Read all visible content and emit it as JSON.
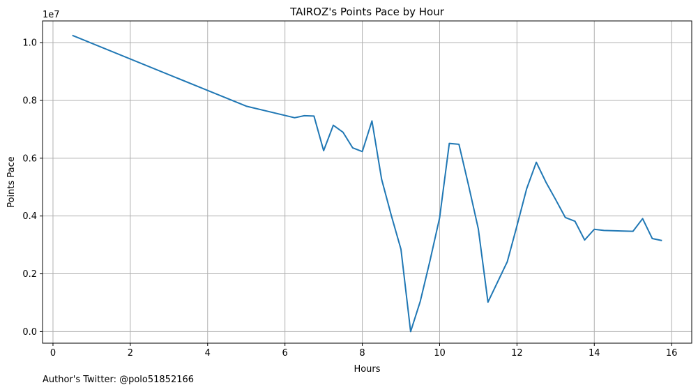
{
  "footer": {
    "author": "Author's Twitter: @polo51852166"
  },
  "chart_data": {
    "type": "line",
    "title": "TAIROZ's Points Pace by Hour",
    "xlabel": "Hours",
    "ylabel": "Points Pace",
    "y_offset_label": "1e7",
    "xlim": [
      -0.27,
      16.52
    ],
    "ylim": [
      -400000.0,
      10750000.0
    ],
    "x_ticks": [
      0,
      2,
      4,
      6,
      8,
      10,
      12,
      14,
      16
    ],
    "x_tick_labels": [
      "0",
      "2",
      "4",
      "6",
      "8",
      "10",
      "12",
      "14",
      "16"
    ],
    "y_ticks": [
      0,
      2000000,
      4000000,
      6000000,
      8000000,
      10000000
    ],
    "y_tick_labels": [
      "0.0",
      "0.2",
      "0.4",
      "0.6",
      "0.8",
      "1.0"
    ],
    "grid": true,
    "line_color": "#1f77b4",
    "series": [
      {
        "x": [
          0.5,
          5.0,
          6.25,
          6.5,
          6.75,
          7.0,
          7.25,
          7.5,
          7.75,
          8.0,
          8.25,
          8.5,
          8.75,
          9.0,
          9.25,
          9.5,
          9.75,
          10.0,
          10.25,
          10.5,
          10.75,
          11.0,
          11.25,
          11.5,
          11.75,
          12.0,
          12.25,
          12.5,
          12.75,
          13.0,
          13.25,
          13.5,
          13.75,
          14.0,
          14.25,
          15.0,
          15.25,
          15.5,
          15.75
        ],
        "y": [
          10250000,
          7800000,
          7400000,
          7470000,
          7460000,
          6260000,
          7140000,
          6900000,
          6360000,
          6230000,
          7290000,
          5270000,
          4020000,
          2850000,
          0,
          1050000,
          2450000,
          3940000,
          6510000,
          6480000,
          5050000,
          3560000,
          1020000,
          1720000,
          2420000,
          3660000,
          4940000,
          5860000,
          5170000,
          4570000,
          3950000,
          3820000,
          3170000,
          3540000,
          3500000,
          3470000,
          3910000,
          3220000,
          3150000
        ]
      }
    ]
  }
}
